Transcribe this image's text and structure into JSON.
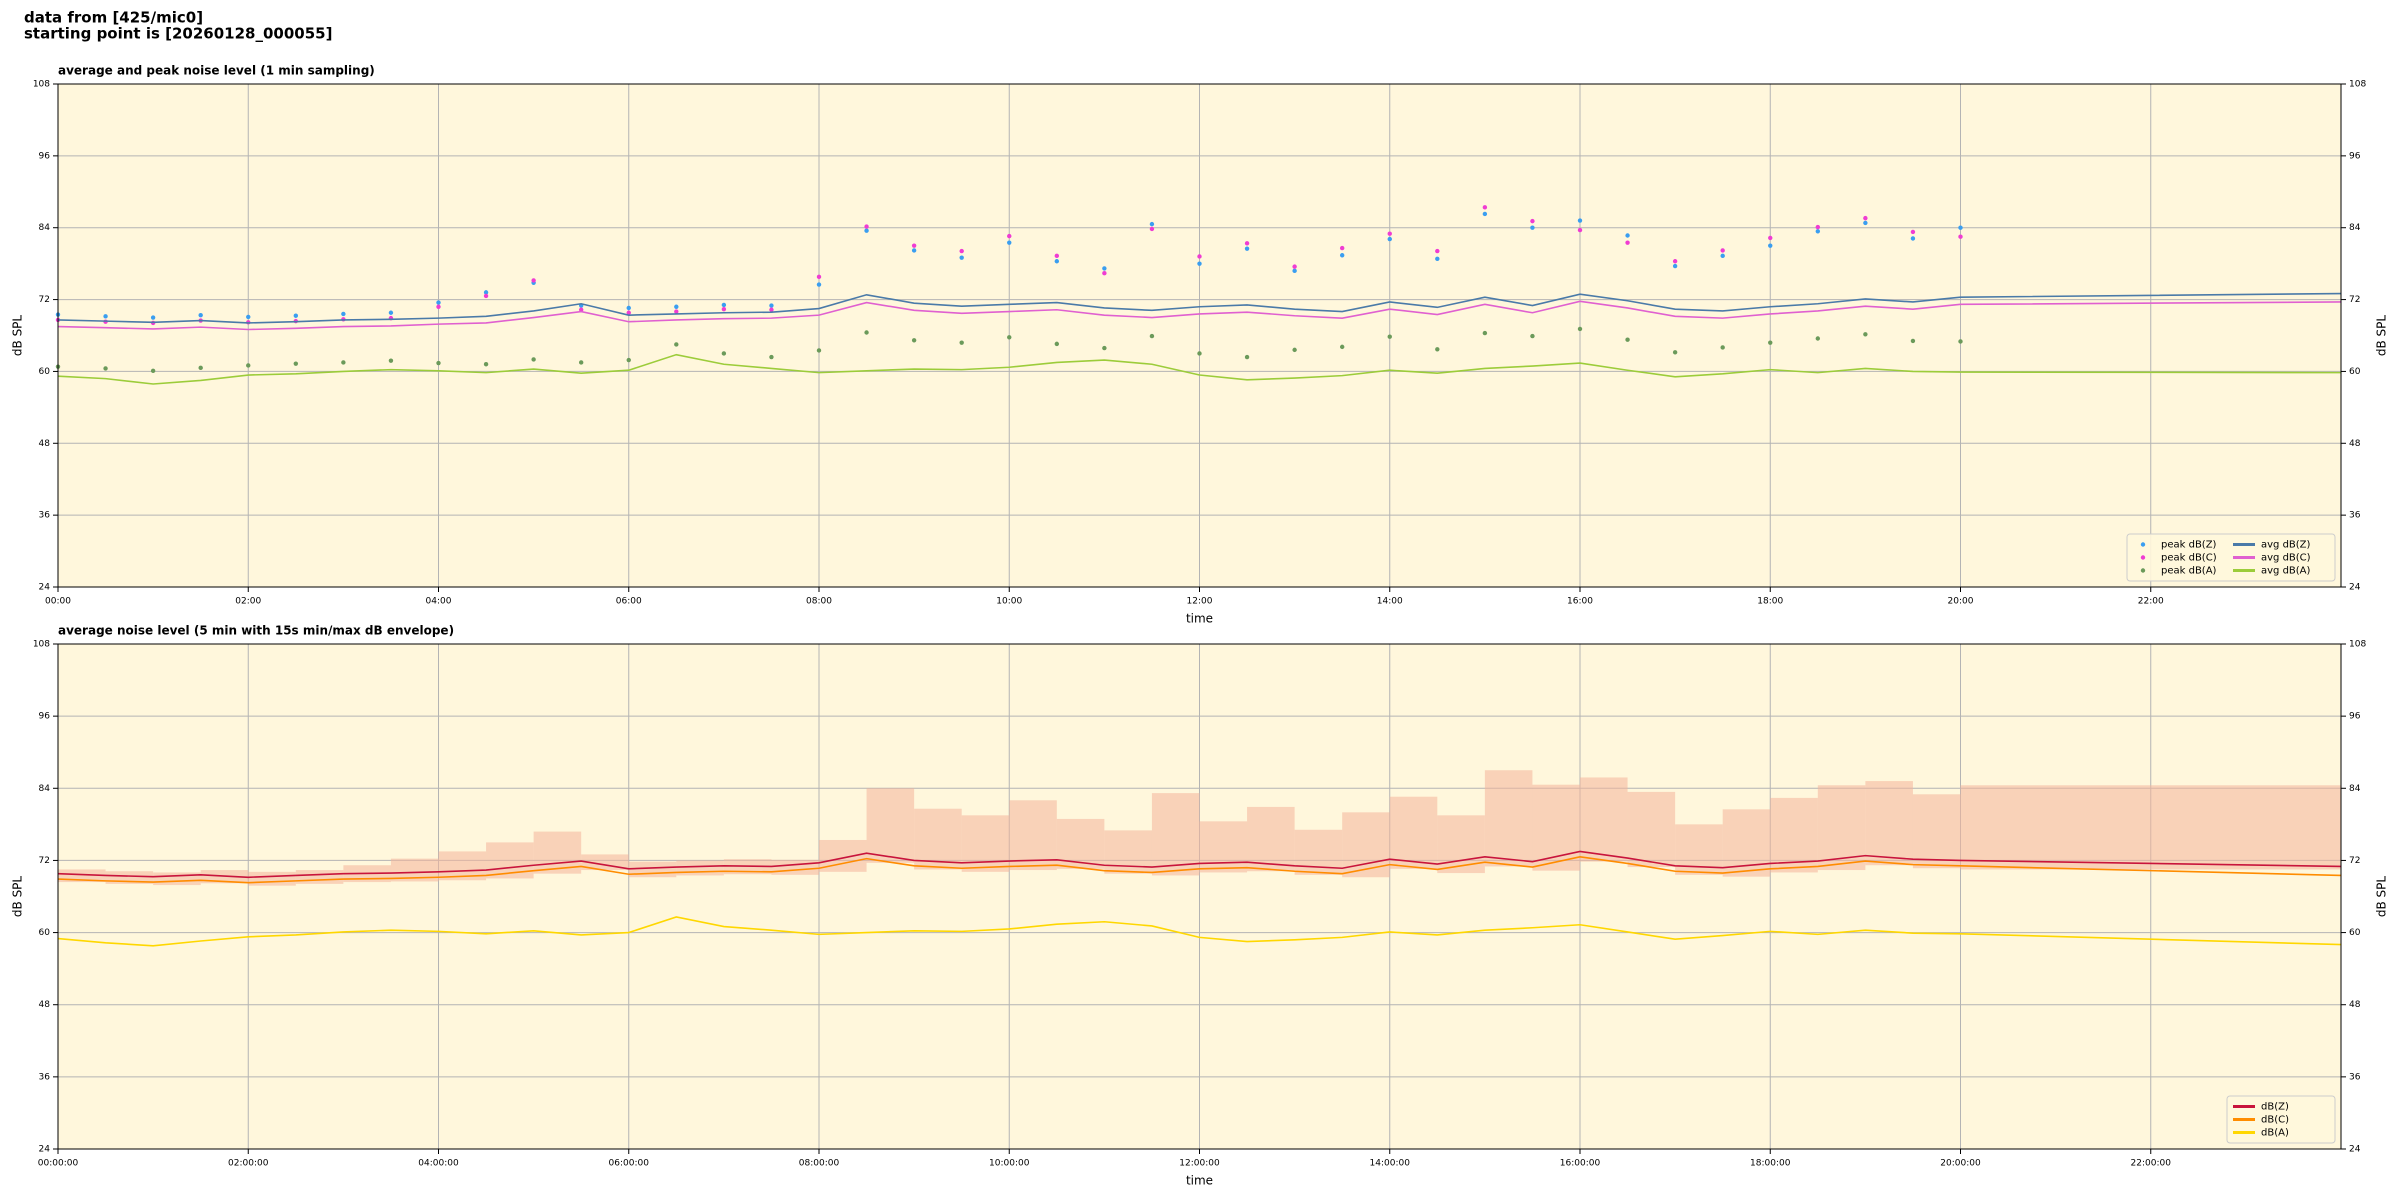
{
  "header": {
    "line1": "data from [425/mic0]",
    "line2": "starting point is [20260128_000055]"
  },
  "chart_data": [
    {
      "type": "line",
      "title": "average and peak noise level (1 min sampling)",
      "xlabel": "time",
      "ylabel": "dB SPL",
      "x": [
        0,
        0.5,
        1,
        1.5,
        2,
        2.5,
        3,
        3.5,
        4,
        4.5,
        5,
        5.5,
        6,
        6.5,
        7,
        7.5,
        8,
        8.5,
        9,
        9.5,
        10,
        10.5,
        11,
        11.5,
        12,
        12.5,
        13,
        13.5,
        14,
        14.5,
        15,
        15.5,
        16,
        16.5,
        17,
        17.5,
        18,
        18.5,
        19,
        19.5,
        20,
        24
      ],
      "xlim": [
        0,
        24
      ],
      "xticks": [
        {
          "value": 0,
          "label": "00:00"
        },
        {
          "value": 2,
          "label": "02:00"
        },
        {
          "value": 4,
          "label": "04:00"
        },
        {
          "value": 6,
          "label": "06:00"
        },
        {
          "value": 8,
          "label": "08:00"
        },
        {
          "value": 10,
          "label": "10:00"
        },
        {
          "value": 12,
          "label": "12:00"
        },
        {
          "value": 14,
          "label": "14:00"
        },
        {
          "value": 16,
          "label": "16:00"
        },
        {
          "value": 18,
          "label": "18:00"
        },
        {
          "value": 20,
          "label": "20:00"
        },
        {
          "value": 22,
          "label": "22:00"
        }
      ],
      "ylim": [
        24,
        108
      ],
      "yticks": [
        24,
        36,
        48,
        60,
        72,
        84,
        96,
        108
      ],
      "grid": true,
      "legend": "lower right",
      "legend_columns": 2,
      "series": [
        {
          "name": "peak dB(Z)",
          "type": "scatter",
          "color": "#3a9ef0",
          "values": [
            69.5,
            69.2,
            69.0,
            69.4,
            69.1,
            69.3,
            69.6,
            69.8,
            71.5,
            73.2,
            74.8,
            71.0,
            70.6,
            70.8,
            71.1,
            71.0,
            74.5,
            83.5,
            80.2,
            79.0,
            81.5,
            78.4,
            77.2,
            84.6,
            78.0,
            80.5,
            76.8,
            79.4,
            82.1,
            78.8,
            86.3,
            84.0,
            85.2,
            82.7,
            77.6,
            79.3,
            81.0,
            83.4,
            84.8,
            82.2,
            84.0,
            null
          ]
        },
        {
          "name": "peak dB(C)",
          "type": "scatter",
          "color": "#f03cd2",
          "values": [
            68.6,
            68.3,
            68.1,
            68.5,
            68.2,
            68.4,
            68.7,
            68.9,
            70.8,
            72.6,
            75.2,
            70.3,
            69.8,
            70.0,
            70.4,
            70.3,
            75.8,
            84.2,
            81.0,
            80.1,
            82.6,
            79.3,
            76.4,
            83.8,
            79.2,
            81.4,
            77.5,
            80.6,
            83.0,
            80.1,
            87.4,
            85.1,
            83.6,
            81.5,
            78.4,
            80.2,
            82.3,
            84.1,
            85.6,
            83.3,
            82.5,
            null
          ]
        },
        {
          "name": "peak dB(A)",
          "type": "scatter",
          "color": "#6b9a5a",
          "values": [
            60.8,
            60.5,
            60.1,
            60.6,
            61.0,
            61.3,
            61.5,
            61.8,
            61.4,
            61.2,
            62.0,
            61.5,
            61.9,
            64.5,
            63.0,
            62.4,
            63.5,
            66.5,
            65.2,
            64.8,
            65.7,
            64.6,
            63.9,
            65.9,
            63.0,
            62.4,
            63.6,
            64.1,
            65.8,
            63.7,
            66.4,
            65.9,
            67.1,
            65.3,
            63.2,
            64.0,
            64.8,
            65.5,
            66.2,
            65.1,
            65.0,
            null
          ]
        },
        {
          "name": "avg dB(Z)",
          "type": "line",
          "color": "#4a7aa8",
          "values": [
            68.6,
            68.4,
            68.2,
            68.5,
            68.1,
            68.3,
            68.6,
            68.7,
            68.9,
            69.2,
            70.1,
            71.3,
            69.4,
            69.6,
            69.8,
            69.9,
            70.5,
            72.8,
            71.4,
            70.9,
            71.2,
            71.5,
            70.6,
            70.2,
            70.8,
            71.1,
            70.4,
            70.0,
            71.6,
            70.7,
            72.4,
            71.0,
            72.9,
            71.8,
            70.4,
            70.1,
            70.8,
            71.3,
            72.1,
            71.6,
            72.4,
            73.0
          ]
        },
        {
          "name": "avg dB(C)",
          "type": "line",
          "color": "#e060d0",
          "values": [
            67.5,
            67.3,
            67.1,
            67.4,
            67.0,
            67.2,
            67.5,
            67.6,
            67.9,
            68.1,
            69.0,
            70.0,
            68.3,
            68.6,
            68.8,
            68.9,
            69.4,
            71.5,
            70.2,
            69.7,
            70.0,
            70.3,
            69.4,
            69.0,
            69.6,
            69.9,
            69.3,
            68.9,
            70.4,
            69.5,
            71.2,
            69.8,
            71.7,
            70.6,
            69.2,
            68.9,
            69.6,
            70.1,
            70.9,
            70.4,
            71.2,
            71.6
          ]
        },
        {
          "name": "avg dB(A)",
          "type": "line",
          "color": "#9ccc3a",
          "values": [
            59.2,
            58.8,
            57.9,
            58.5,
            59.4,
            59.6,
            60.0,
            60.3,
            60.1,
            59.8,
            60.4,
            59.7,
            60.2,
            62.8,
            61.2,
            60.5,
            59.8,
            60.1,
            60.4,
            60.3,
            60.7,
            61.5,
            61.9,
            61.2,
            59.4,
            58.6,
            58.9,
            59.3,
            60.2,
            59.7,
            60.5,
            60.9,
            61.4,
            60.2,
            59.1,
            59.6,
            60.3,
            59.8,
            60.5,
            60.0,
            59.9,
            59.8
          ]
        }
      ]
    },
    {
      "type": "line",
      "title": "average noise level (5 min with 15s min/max dB envelope)",
      "xlabel": "time",
      "ylabel": "dB SPL",
      "x": [
        0,
        0.5,
        1,
        1.5,
        2,
        2.5,
        3,
        3.5,
        4,
        4.5,
        5,
        5.5,
        6,
        6.5,
        7,
        7.5,
        8,
        8.5,
        9,
        9.5,
        10,
        10.5,
        11,
        11.5,
        12,
        12.5,
        13,
        13.5,
        14,
        14.5,
        15,
        15.5,
        16,
        16.5,
        17,
        17.5,
        18,
        18.5,
        19,
        19.5,
        20,
        24
      ],
      "xlim": [
        0,
        24
      ],
      "xticks": [
        {
          "value": 0,
          "label": "00:00:00"
        },
        {
          "value": 2,
          "label": "02:00:00"
        },
        {
          "value": 4,
          "label": "04:00:00"
        },
        {
          "value": 6,
          "label": "06:00:00"
        },
        {
          "value": 8,
          "label": "08:00:00"
        },
        {
          "value": 10,
          "label": "10:00:00"
        },
        {
          "value": 12,
          "label": "12:00:00"
        },
        {
          "value": 14,
          "label": "14:00:00"
        },
        {
          "value": 16,
          "label": "16:00:00"
        },
        {
          "value": 18,
          "label": "18:00:00"
        },
        {
          "value": 20,
          "label": "20:00:00"
        },
        {
          "value": 22,
          "label": "22:00:00"
        }
      ],
      "ylim": [
        24,
        108
      ],
      "yticks": [
        24,
        36,
        48,
        60,
        72,
        84,
        96,
        108
      ],
      "grid": true,
      "legend": "lower right",
      "legend_columns": 1,
      "series": [
        {
          "type": "band",
          "color": "#f4b49a",
          "values": [
            70.5,
            70.2,
            70.0,
            70.4,
            70.1,
            70.4,
            71.2,
            72.3,
            73.5,
            75.0,
            76.8,
            73.0,
            71.8,
            72.0,
            72.2,
            72.1,
            75.4,
            84.0,
            80.6,
            79.5,
            82.0,
            78.9,
            77.0,
            83.2,
            78.5,
            80.9,
            77.1,
            80.0,
            82.6,
            79.5,
            87.0,
            84.6,
            85.8,
            83.4,
            78.0,
            80.5,
            82.4,
            84.5,
            85.2,
            83.0,
            84.5,
            null
          ],
          "low": [
            68.4,
            68.1,
            67.9,
            68.2,
            67.8,
            68.1,
            68.4,
            68.5,
            68.7,
            69.0,
            69.8,
            70.4,
            69.2,
            69.5,
            69.7,
            69.6,
            70.1,
            71.6,
            70.5,
            70.1,
            70.4,
            70.6,
            69.8,
            69.5,
            70.0,
            70.2,
            69.6,
            69.2,
            70.6,
            69.9,
            71.0,
            70.3,
            71.8,
            70.9,
            69.6,
            69.3,
            70.0,
            70.4,
            71.2,
            70.7,
            70.5,
            null
          ]
        },
        {
          "name": "dB(Z)",
          "type": "line",
          "color": "#c8143c",
          "values": [
            69.8,
            69.5,
            69.3,
            69.6,
            69.2,
            69.5,
            69.8,
            69.9,
            70.1,
            70.4,
            71.2,
            71.9,
            70.6,
            70.9,
            71.1,
            71.0,
            71.6,
            73.2,
            72.0,
            71.6,
            71.9,
            72.1,
            71.2,
            70.9,
            71.5,
            71.7,
            71.1,
            70.7,
            72.2,
            71.4,
            72.6,
            71.8,
            73.5,
            72.4,
            71.1,
            70.8,
            71.5,
            71.9,
            72.8,
            72.2,
            72.0,
            71.0
          ]
        },
        {
          "name": "dB(C)",
          "type": "line",
          "color": "#ff8c00",
          "values": [
            68.9,
            68.6,
            68.4,
            68.7,
            68.3,
            68.6,
            68.9,
            69.0,
            69.2,
            69.5,
            70.3,
            71.0,
            69.7,
            70.0,
            70.2,
            70.1,
            70.7,
            72.3,
            71.1,
            70.7,
            71.0,
            71.2,
            70.3,
            70.0,
            70.6,
            70.8,
            70.2,
            69.8,
            71.3,
            70.5,
            71.7,
            70.9,
            72.6,
            71.5,
            70.2,
            69.9,
            70.6,
            71.0,
            71.9,
            71.3,
            71.1,
            69.5
          ]
        },
        {
          "name": "dB(A)",
          "type": "line",
          "color": "#ffd700",
          "values": [
            59.0,
            58.3,
            57.8,
            58.6,
            59.3,
            59.6,
            60.1,
            60.4,
            60.2,
            59.8,
            60.3,
            59.6,
            60.0,
            62.6,
            61.0,
            60.4,
            59.7,
            60.0,
            60.3,
            60.2,
            60.6,
            61.4,
            61.8,
            61.1,
            59.2,
            58.5,
            58.8,
            59.2,
            60.1,
            59.6,
            60.4,
            60.8,
            61.3,
            60.1,
            58.9,
            59.5,
            60.2,
            59.7,
            60.4,
            59.9,
            59.8,
            58.0
          ]
        }
      ]
    }
  ]
}
